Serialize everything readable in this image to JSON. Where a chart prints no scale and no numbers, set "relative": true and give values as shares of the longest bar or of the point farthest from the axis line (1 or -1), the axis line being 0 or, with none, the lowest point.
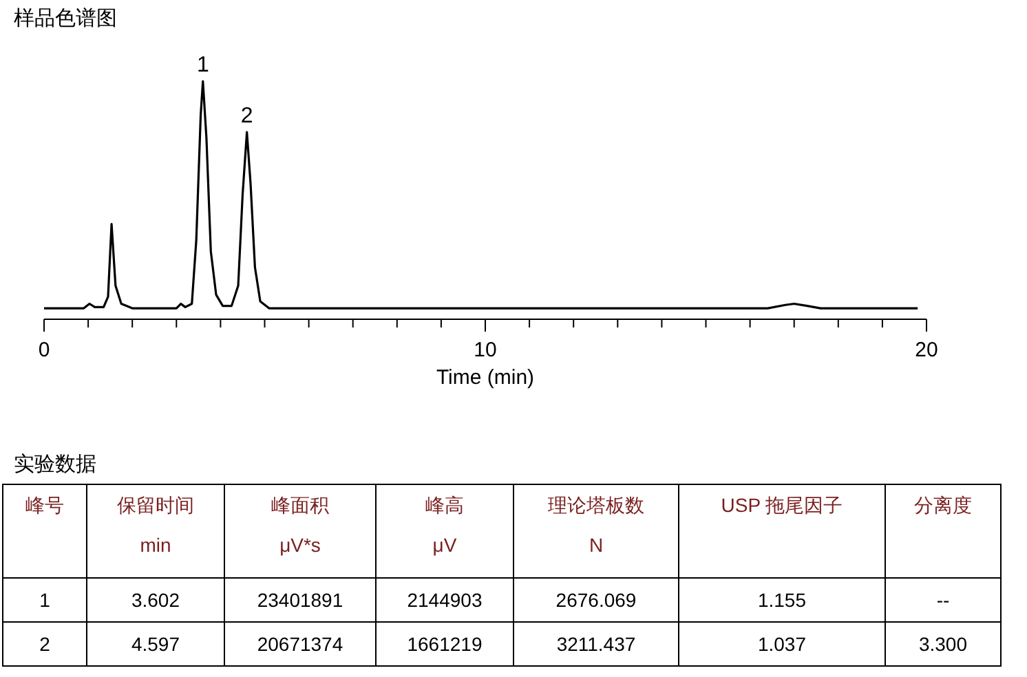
{
  "chart_data": [
    {
      "type": "line",
      "title": "样品色谱图",
      "xlabel": "Time (min)",
      "relative": true,
      "xlim": [
        0,
        20
      ],
      "xticks": [
        0,
        {
          "value": 1,
          "label": null
        },
        {
          "value": 2,
          "label": null
        },
        {
          "value": 3,
          "label": null
        },
        {
          "value": 4,
          "label": null
        },
        {
          "value": 5,
          "label": null
        },
        {
          "value": 6,
          "label": null
        },
        {
          "value": 7,
          "label": null
        },
        {
          "value": 8,
          "label": null
        },
        {
          "value": 9,
          "label": null
        },
        10,
        {
          "value": 11,
          "label": null
        },
        {
          "value": 12,
          "label": null
        },
        {
          "value": 13,
          "label": null
        },
        {
          "value": 14,
          "label": null
        },
        {
          "value": 15,
          "label": null
        },
        {
          "value": 16,
          "label": null
        },
        {
          "value": 17,
          "label": null
        },
        {
          "value": 18,
          "label": null
        },
        {
          "value": 19,
          "label": null
        },
        20
      ],
      "marker": "none",
      "line_style": "solid",
      "series": [
        {
          "color": "#000000",
          "x": [
            0,
            0.9,
            1.03,
            1.15,
            1.35,
            1.45,
            1.53,
            1.62,
            1.75,
            2.0,
            3.0,
            3.1,
            3.2,
            3.35,
            3.45,
            3.55,
            3.6,
            3.68,
            3.78,
            3.9,
            4.05,
            4.25,
            4.4,
            4.5,
            4.597,
            4.68,
            4.78,
            4.9,
            5.1,
            16.4,
            16.8,
            17.0,
            17.3,
            17.6,
            19.8
          ],
          "values": [
            0.046,
            0.046,
            0.065,
            0.051,
            0.051,
            0.094,
            0.4,
            0.141,
            0.065,
            0.046,
            0.046,
            0.065,
            0.051,
            0.065,
            0.332,
            0.857,
            1,
            0.762,
            0.285,
            0.103,
            0.056,
            0.056,
            0.141,
            0.523,
            0.786,
            0.571,
            0.218,
            0.075,
            0.046,
            0.046,
            0.06,
            0.065,
            0.056,
            0.046,
            0.046
          ]
        }
      ],
      "annotations": [
        {
          "text": "1",
          "x": 3.602,
          "y": 1
        },
        {
          "text": "2",
          "x": 4.597,
          "y": 0.786
        }
      ]
    },
    {
      "type": "other",
      "title": "实验数据",
      "annotations": [
        "峰号",
        "保留时间\nmin",
        "峰面积\nμV*s",
        "峰高\nμV",
        "理论塔板数\nN",
        "USP 拖尾因子",
        "分离度",
        "1",
        "3.602",
        "23401891",
        "2144903",
        "2676.069",
        "1.155",
        "--",
        "2",
        "4.597",
        "20671374",
        "1661219",
        "3211.437",
        "1.037",
        "3.300"
      ]
    }
  ]
}
